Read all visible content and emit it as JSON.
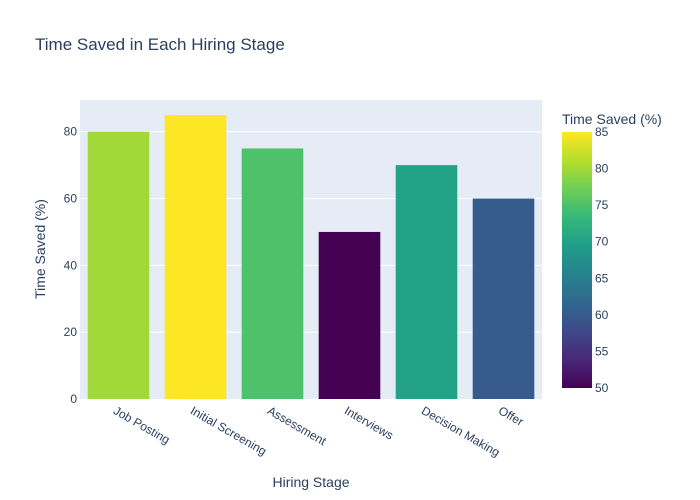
{
  "chart_data": {
    "type": "bar",
    "title": "Time Saved in Each Hiring Stage",
    "xlabel": "Hiring Stage",
    "ylabel": "Time Saved (%)",
    "categories": [
      "Job Posting",
      "Initial Screening",
      "Assessment",
      "Interviews",
      "Decision Making",
      "Offer"
    ],
    "values": [
      80,
      85,
      75,
      50,
      70,
      60
    ],
    "ylim": [
      0,
      89.5
    ],
    "yticks": [
      0,
      20,
      40,
      60,
      80
    ],
    "grid": true,
    "colorscale": "Viridis",
    "colorbar": {
      "title": "Time Saved (%)",
      "range": [
        50,
        85
      ],
      "ticks": [
        50,
        55,
        60,
        65,
        70,
        75,
        80,
        85
      ]
    },
    "colors": {
      "plot_background": "#e5ecf6",
      "text": "#2a3f5f",
      "gridline": "#ffffff"
    }
  }
}
